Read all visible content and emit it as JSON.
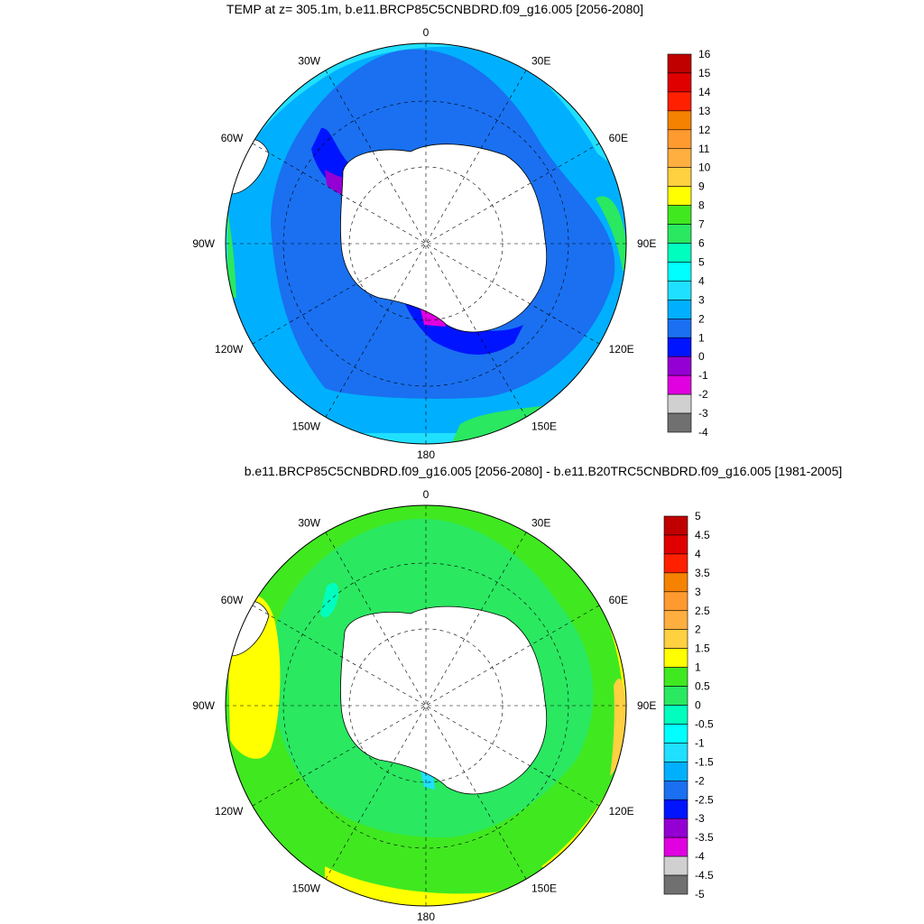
{
  "top_panel": {
    "title": "TEMP at z= 305.1m, b.e11.BRCP85C5CNBDRD.f09_g16.005 [2056-2080]",
    "lon_labels": [
      "0",
      "30E",
      "60E",
      "90E",
      "120E",
      "150E",
      "180",
      "150W",
      "120W",
      "90W",
      "60W",
      "30W"
    ],
    "colorbar": {
      "labels": [
        "16",
        "15",
        "14",
        "13",
        "12",
        "11",
        "10",
        "9",
        "8",
        "7",
        "6",
        "5",
        "4",
        "3",
        "2",
        "1",
        "0",
        "-1",
        "-2",
        "-3",
        "-4"
      ],
      "colors": [
        "#c00000",
        "#e00000",
        "#ff2000",
        "#f58200",
        "#ff9a30",
        "#ffaf40",
        "#ffd040",
        "#ffff00",
        "#40e820",
        "#2ae860",
        "#00ffbf",
        "#00ffff",
        "#20e0ff",
        "#00b0ff",
        "#1a70f0",
        "#0014ff",
        "#9400d3",
        "#e000e0",
        "#d0d0d0",
        "#707070"
      ]
    }
  },
  "bottom_panel": {
    "title": "b.e11.BRCP85C5CNBDRD.f09_g16.005 [2056-2080] - b.e11.B20TRC5CNBDRD.f09_g16.005 [1981-2005]",
    "lon_labels": [
      "0",
      "30E",
      "60E",
      "90E",
      "120E",
      "150E",
      "180",
      "150W",
      "120W",
      "90W",
      "60W",
      "30W"
    ],
    "colorbar": {
      "labels": [
        "5",
        "4.5",
        "4",
        "3.5",
        "3",
        "2.5",
        "2",
        "1.5",
        "1",
        "0.5",
        "0",
        "-0.5",
        "-1",
        "-1.5",
        "-2",
        "-2.5",
        "-3",
        "-3.5",
        "-4",
        "-4.5",
        "-5"
      ],
      "colors": [
        "#c00000",
        "#e00000",
        "#ff2000",
        "#f58200",
        "#ff9a30",
        "#ffaf40",
        "#ffd040",
        "#ffff00",
        "#40e820",
        "#2ae860",
        "#00ffbf",
        "#00ffff",
        "#20e0ff",
        "#00b0ff",
        "#1a70f0",
        "#0014ff",
        "#9400d3",
        "#e000e0",
        "#d0d0d0",
        "#707070"
      ]
    }
  }
}
